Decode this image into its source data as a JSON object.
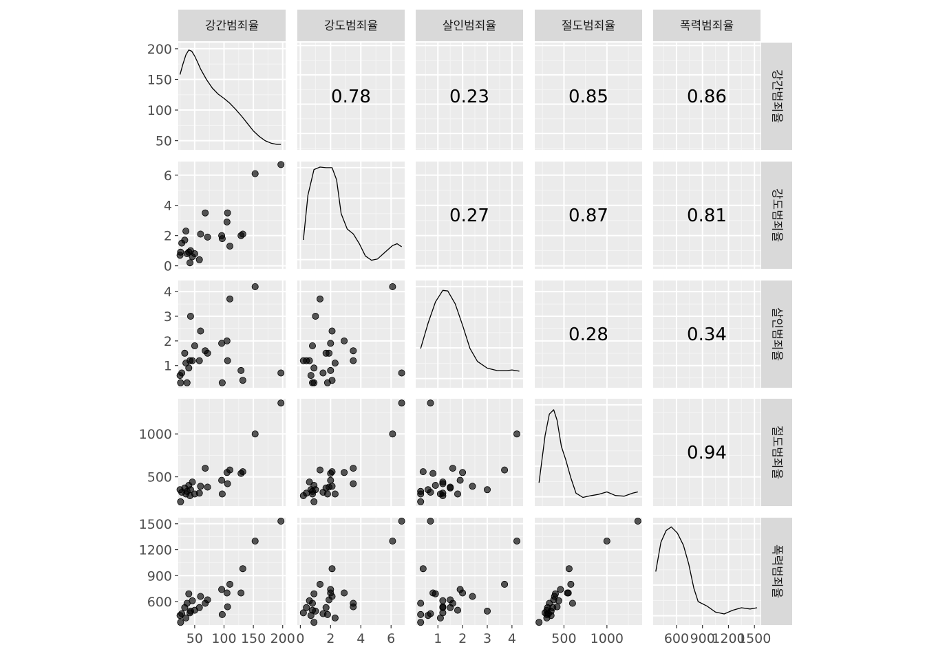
{
  "chart_data": {
    "type": "scatter",
    "variables": [
      "강간범죄율",
      "강도범죄율",
      "살인범죄율",
      "절도범죄율",
      "폭력범죄율"
    ],
    "axes": [
      {
        "name": "강간범죄율",
        "range": [
          22,
          205
        ],
        "ticks": [
          50,
          100,
          150,
          200
        ],
        "tick_labels": [
          "50",
          "100",
          "150",
          "200"
        ]
      },
      {
        "name": "강도범죄율",
        "range": [
          -0.2,
          6.9
        ],
        "ticks": [
          0,
          2,
          4,
          6
        ],
        "tick_labels": [
          "0",
          "2",
          "4",
          "6"
        ]
      },
      {
        "name": "살인범죄율",
        "range": [
          0.1,
          4.45
        ],
        "ticks": [
          1,
          2,
          3,
          4
        ],
        "tick_labels": [
          "1",
          "2",
          "3",
          "4"
        ]
      },
      {
        "name": "절도범죄율",
        "range": [
          160,
          1410
        ],
        "ticks": [
          500,
          1000
        ],
        "tick_labels": [
          "500",
          "1000"
        ]
      },
      {
        "name": "폭력범죄율",
        "range": [
          330,
          1570
        ],
        "ticks": [
          600,
          900,
          1200,
          1500
        ],
        "tick_labels": [
          "600",
          "900",
          "1200",
          "1500"
        ]
      }
    ],
    "observations": [
      {
        "강간범죄율": 25,
        "강도범죄율": 0.7,
        "살인범죄율": 0.6,
        "절도범죄율": 350,
        "폭력범죄율": 440
      },
      {
        "강간범죄율": 26,
        "강도범죄율": 0.9,
        "살인범죄율": 0.3,
        "절도범죄율": 210,
        "폭력범죄율": 360
      },
      {
        "강간범죄율": 28,
        "강도범죄율": 1.5,
        "살인범죄율": 0.7,
        "절도범죄율": 320,
        "폭력범죄율": 460
      },
      {
        "강간범죄율": 33,
        "강도범죄율": 1.7,
        "살인범죄율": 1.5,
        "절도범죄율": 370,
        "폭력범죄율": 530
      },
      {
        "강간범죄율": 35,
        "강도범죄율": 2.3,
        "살인범죄율": 1.1,
        "절도범죄율": 300,
        "폭력범죄율": 410
      },
      {
        "강간범죄율": 37,
        "강도범죄율": 0.8,
        "살인범죄율": 0.3,
        "절도범죄율": 330,
        "폭력범죄율": 580
      },
      {
        "강간범죄율": 40,
        "강도범죄율": 0.9,
        "살인범죄율": 0.9,
        "절도범죄율": 400,
        "폭력범죄율": 690
      },
      {
        "강간범죄율": 42,
        "강도범죄율": 0.2,
        "살인범죄율": 1.2,
        "절도범죄율": 280,
        "폭력범죄율": 470
      },
      {
        "강간범죄율": 43,
        "강도범죄율": 1.0,
        "살인범죄율": 3.0,
        "절도범죄율": 350,
        "폭력범죄율": 490
      },
      {
        "강간범죄율": 46,
        "강도범죄율": 0.6,
        "살인범죄율": 1.2,
        "절도범죄율": 440,
        "폭력범죄율": 610
      },
      {
        "강간범죄율": 50,
        "강도범죄율": 0.8,
        "살인범죄율": 1.8,
        "절도범죄율": 300,
        "폭력범죄율": 500
      },
      {
        "강간범죄율": 58,
        "강도범죄율": 0.4,
        "살인범죄율": 1.2,
        "절도범죄율": 310,
        "폭력범죄율": 530
      },
      {
        "강간범죄율": 60,
        "강도범죄율": 2.1,
        "살인범죄율": 2.4,
        "절도범죄율": 390,
        "폭력범죄율": 660
      },
      {
        "강간범죄율": 68,
        "강도범죄율": 3.5,
        "살인범죄율": 1.6,
        "절도범죄율": 600,
        "폭력범죄율": 580
      },
      {
        "강간범죄율": 72,
        "강도범죄율": 1.9,
        "살인범죄율": 1.5,
        "절도범죄율": 380,
        "폭력범죄율": 620
      },
      {
        "강간범죄율": 96,
        "강도범죄율": 2.0,
        "살인범죄율": 1.9,
        "절도범죄율": 460,
        "폭력범죄율": 740
      },
      {
        "강간범죄율": 97,
        "강도범죄율": 1.8,
        "살인범죄율": 0.3,
        "절도범죄율": 300,
        "폭력범죄율": 450
      },
      {
        "강간범죄율": 105,
        "강도범죄율": 2.9,
        "살인범죄율": 2.0,
        "절도범죄율": 550,
        "폭력범죄율": 700
      },
      {
        "강간범죄율": 106,
        "강도범죄율": 3.5,
        "살인범죄율": 1.2,
        "절도범죄율": 420,
        "폭력범죄율": 540
      },
      {
        "강간범죄율": 110,
        "강도범죄율": 1.3,
        "살인범죄율": 3.7,
        "절도범죄율": 580,
        "폭력범죄율": 800
      },
      {
        "강간범죄율": 129,
        "강도범죄율": 2.0,
        "살인범죄율": 0.8,
        "절도범죄율": 540,
        "폭력범죄율": 700
      },
      {
        "강간범죄율": 132,
        "강도범죄율": 2.1,
        "살인범죄율": 0.4,
        "절도범죄율": 560,
        "폭력범죄율": 980
      },
      {
        "강간범죄율": 153,
        "강도범죄율": 6.1,
        "살인범죄율": 4.2,
        "절도범죄율": 1000,
        "폭력범죄율": 1300
      },
      {
        "강간범죄율": 197,
        "강도범죄율": 6.7,
        "살인범죄율": 0.7,
        "절도범죄율": 1360,
        "폭력범죄율": 1530
      }
    ],
    "correlations": [
      {
        "row": 0,
        "col": 1,
        "value": "0.78"
      },
      {
        "row": 0,
        "col": 2,
        "value": "0.23"
      },
      {
        "row": 0,
        "col": 3,
        "value": "0.85"
      },
      {
        "row": 0,
        "col": 4,
        "value": "0.86"
      },
      {
        "row": 1,
        "col": 2,
        "value": "0.27"
      },
      {
        "row": 1,
        "col": 3,
        "value": "0.87"
      },
      {
        "row": 1,
        "col": 4,
        "value": "0.81"
      },
      {
        "row": 2,
        "col": 3,
        "value": "0.28"
      },
      {
        "row": 2,
        "col": 4,
        "value": "0.34"
      },
      {
        "row": 3,
        "col": 4,
        "value": "0.94"
      }
    ],
    "density_y_axis": {
      "ticks": [
        50,
        100,
        150,
        200
      ],
      "tick_labels": [
        "50",
        "100",
        "150",
        "200"
      ],
      "range": [
        35,
        210
      ]
    },
    "densities": [
      [
        [
          25,
          158
        ],
        [
          30,
          175
        ],
        [
          35,
          190
        ],
        [
          40,
          198
        ],
        [
          45,
          196
        ],
        [
          50,
          188
        ],
        [
          55,
          178
        ],
        [
          60,
          167
        ],
        [
          70,
          150
        ],
        [
          80,
          136
        ],
        [
          90,
          126
        ],
        [
          100,
          119
        ],
        [
          110,
          111
        ],
        [
          120,
          101
        ],
        [
          130,
          90
        ],
        [
          140,
          78
        ],
        [
          150,
          66
        ],
        [
          160,
          57
        ],
        [
          170,
          50
        ],
        [
          180,
          46
        ],
        [
          190,
          44
        ],
        [
          197,
          44
        ]
      ],
      [
        [
          0.2,
          82
        ],
        [
          0.5,
          155
        ],
        [
          0.9,
          197
        ],
        [
          1.3,
          201
        ],
        [
          1.7,
          200
        ],
        [
          2.1,
          200
        ],
        [
          2.4,
          180
        ],
        [
          2.7,
          125
        ],
        [
          3.1,
          100
        ],
        [
          3.5,
          92
        ],
        [
          3.9,
          76
        ],
        [
          4.3,
          56
        ],
        [
          4.7,
          49
        ],
        [
          5.1,
          51
        ],
        [
          5.6,
          62
        ],
        [
          6.1,
          73
        ],
        [
          6.4,
          76
        ],
        [
          6.7,
          71
        ]
      ],
      [
        [
          0.3,
          99
        ],
        [
          0.6,
          140
        ],
        [
          0.9,
          175
        ],
        [
          1.2,
          194
        ],
        [
          1.4,
          193
        ],
        [
          1.7,
          172
        ],
        [
          2.0,
          137
        ],
        [
          2.3,
          99
        ],
        [
          2.6,
          78
        ],
        [
          3.0,
          67
        ],
        [
          3.4,
          63
        ],
        [
          3.8,
          63
        ],
        [
          4.0,
          64
        ],
        [
          4.3,
          62
        ]
      ],
      [
        [
          210,
          73
        ],
        [
          280,
          150
        ],
        [
          330,
          185
        ],
        [
          380,
          192
        ],
        [
          420,
          175
        ],
        [
          470,
          132
        ],
        [
          520,
          111
        ],
        [
          580,
          81
        ],
        [
          640,
          56
        ],
        [
          720,
          49
        ],
        [
          820,
          52
        ],
        [
          900,
          54
        ],
        [
          1000,
          58
        ],
        [
          1100,
          52
        ],
        [
          1200,
          51
        ],
        [
          1300,
          56
        ],
        [
          1360,
          58
        ]
      ],
      [
        [
          360,
          122
        ],
        [
          420,
          170
        ],
        [
          480,
          189
        ],
        [
          540,
          195
        ],
        [
          610,
          185
        ],
        [
          680,
          165
        ],
        [
          740,
          135
        ],
        [
          800,
          95
        ],
        [
          850,
          73
        ],
        [
          950,
          66
        ],
        [
          1050,
          56
        ],
        [
          1150,
          53
        ],
        [
          1250,
          59
        ],
        [
          1350,
          63
        ],
        [
          1450,
          61
        ],
        [
          1530,
          63
        ]
      ]
    ]
  }
}
